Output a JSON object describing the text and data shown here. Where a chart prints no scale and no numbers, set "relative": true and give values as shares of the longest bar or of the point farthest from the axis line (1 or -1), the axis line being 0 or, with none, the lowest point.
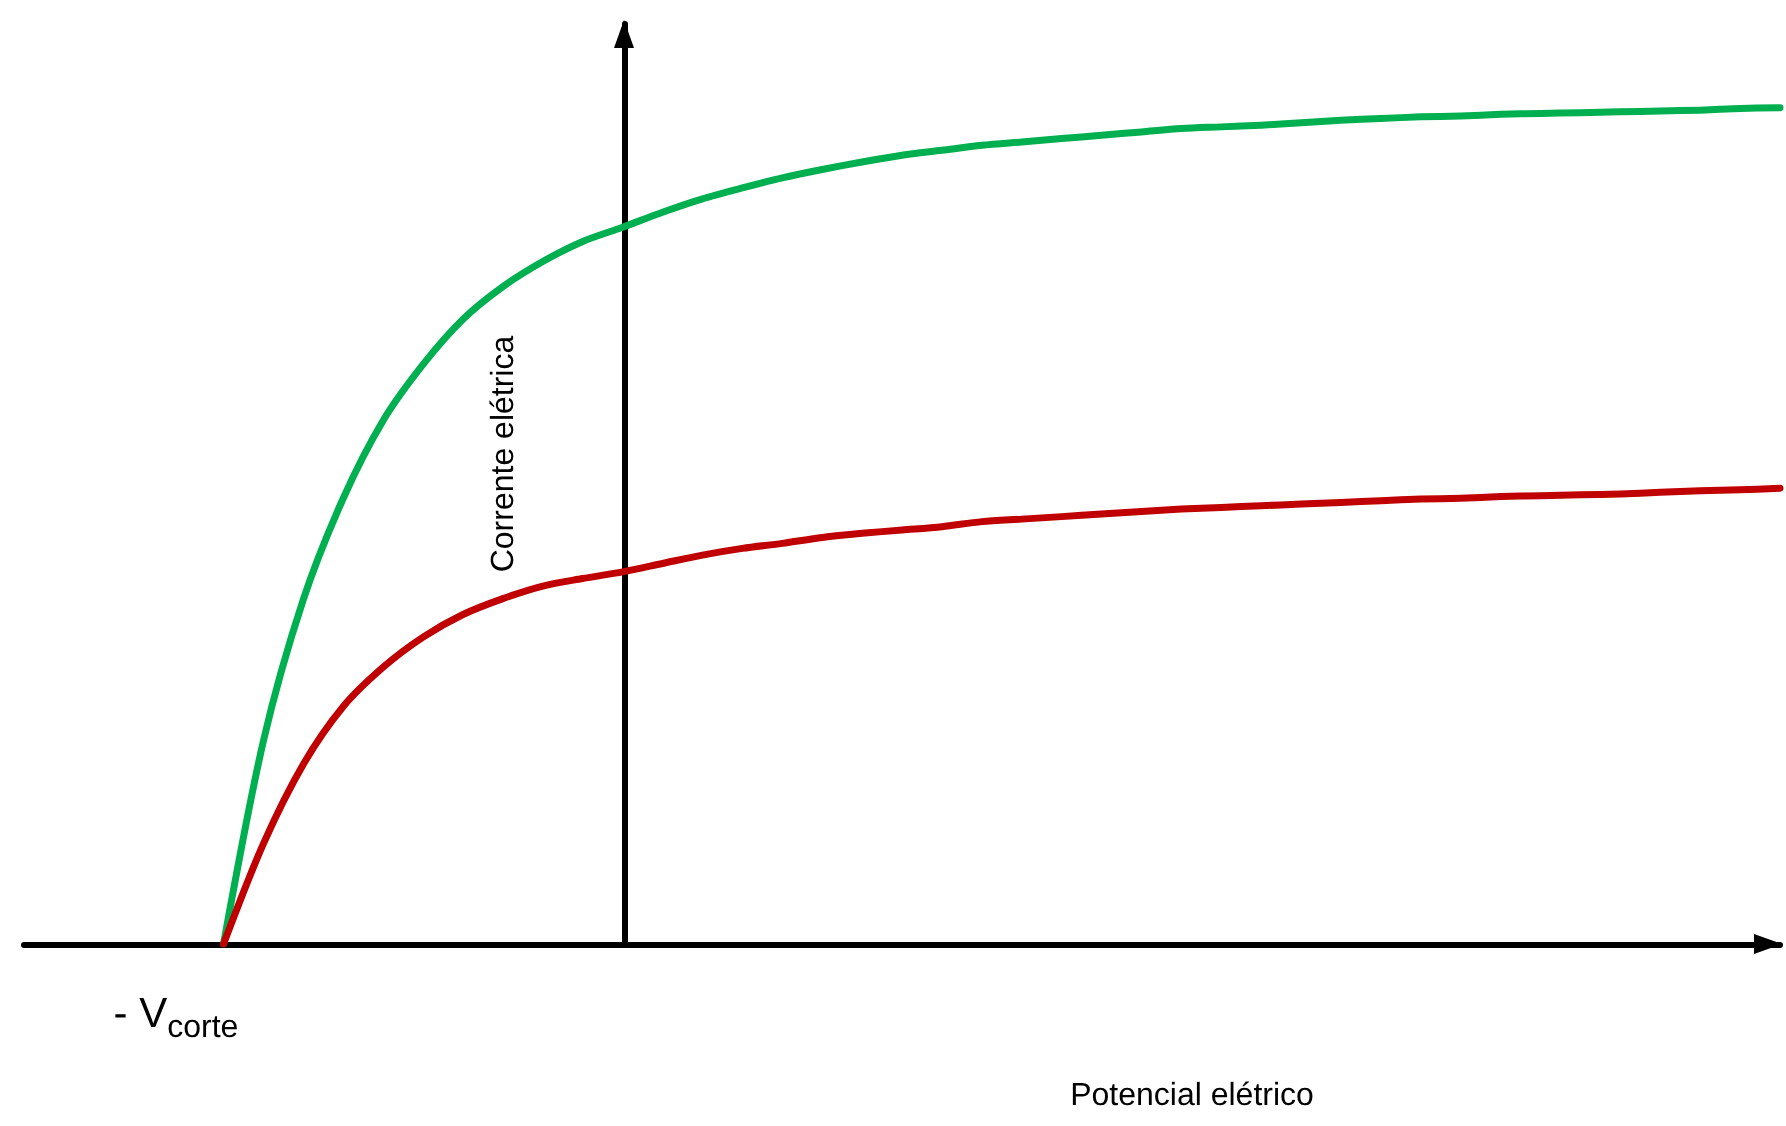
{
  "chart_data": {
    "type": "line",
    "relative": true,
    "xlabel": "Potencial elétrico",
    "ylabel": "Corrente elétrica",
    "annotations": [
      "- V$_{corte}$"
    ],
    "grid": false,
    "categories": [
      null,
      null,
      null,
      null,
      null,
      null,
      null,
      null,
      null,
      null,
      null,
      null,
      null,
      null,
      null,
      null,
      null,
      null,
      null,
      null,
      null,
      null,
      null,
      null,
      null,
      null,
      null,
      null,
      null,
      null,
      null,
      null,
      null,
      null,
      null,
      null,
      null,
      null,
      null,
      null,
      null,
      null,
      null,
      null,
      null
    ],
    "series": [
      {
        "color": "#00b050",
        "values": [
          null,
          null,
          null,
          null,
          null,
          0,
          0.243,
          0.412,
          0.533,
          0.626,
          0.693,
          0.747,
          0.786,
          0.816,
          0.84,
          0.857,
          0.875,
          0.891,
          0.904,
          0.916,
          0.926,
          0.935,
          0.943,
          0.949,
          0.955,
          0.959,
          0.963,
          0.967,
          0.971,
          0.975,
          0.977,
          0.979,
          0.982,
          0.985,
          0.987,
          0.989,
          0.99,
          0.992,
          0.993,
          0.994,
          0.995,
          0.996,
          0.997,
          0.999,
          1
        ]
      },
      {
        "color": "#c00000",
        "values": [
          null,
          null,
          null,
          null,
          null,
          0,
          0.12,
          0.215,
          0.284,
          0.331,
          0.367,
          0.394,
          0.413,
          0.428,
          0.437,
          0.445,
          0.455,
          0.465,
          0.473,
          0.479,
          0.486,
          0.491,
          0.495,
          0.499,
          0.505,
          0.508,
          0.511,
          0.514,
          0.517,
          0.52,
          0.522,
          0.524,
          0.526,
          0.528,
          0.53,
          0.532,
          0.533,
          0.535,
          0.536,
          0.537,
          0.538,
          0.54,
          0.542,
          0.543,
          0.545
        ]
      }
    ]
  }
}
